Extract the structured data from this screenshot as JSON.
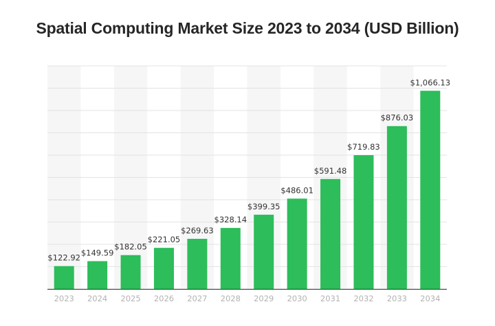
{
  "chart_data": {
    "type": "bar",
    "title": "Spatial Computing Market Size 2023 to 2034 (USD Billion)",
    "categories": [
      "2023",
      "2024",
      "2025",
      "2026",
      "2027",
      "2028",
      "2029",
      "2030",
      "2031",
      "2032",
      "2033",
      "2034"
    ],
    "values": [
      122.92,
      149.59,
      182.05,
      221.05,
      269.63,
      328.14,
      399.35,
      486.01,
      591.48,
      719.83,
      876.03,
      1066.13
    ],
    "data_labels": [
      "$122.92",
      "$149.59",
      "$182.05",
      "$221.05",
      "$269.63",
      "$328.14",
      "$399.35",
      "$486.01",
      "$591.48",
      "$719.83",
      "$876.03",
      "$1,066.13"
    ],
    "xlabel": "",
    "ylabel": "",
    "ylim": [
      0,
      1200
    ],
    "grid": true,
    "legend": "none",
    "bar_color": "#2dbd5a"
  }
}
